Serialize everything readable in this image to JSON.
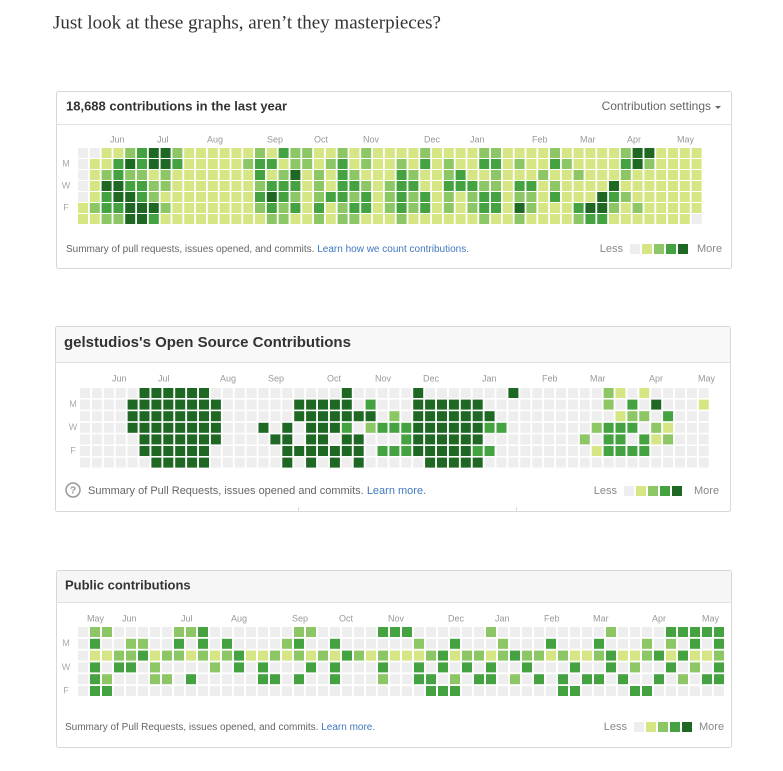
{
  "intro": "Just look at these graphs, aren’t they masterpieces?",
  "graphs": [
    {
      "title": "18,688 contributions in the last year",
      "settings": "Contribution settings",
      "months": [
        "Jun",
        "Jul",
        "Aug",
        "Sep",
        "Oct",
        "Nov",
        "Dec",
        "Jan",
        "Feb",
        "Mar",
        "Apr",
        "May"
      ],
      "days": [
        "M",
        "W",
        "F"
      ],
      "rows": [
        [
          0,
          0,
          1,
          1,
          2,
          3,
          4,
          4,
          2,
          1,
          1,
          1,
          1,
          1,
          1,
          2,
          1,
          3,
          2,
          2,
          1,
          1,
          2,
          1,
          2,
          1,
          1,
          1,
          1,
          2,
          1,
          1,
          1,
          1,
          2,
          2,
          1,
          1,
          1,
          1,
          2,
          1,
          1,
          1,
          1,
          1,
          2,
          4,
          4,
          1,
          1,
          1,
          1
        ],
        [
          0,
          1,
          1,
          3,
          4,
          3,
          4,
          4,
          3,
          1,
          1,
          1,
          1,
          1,
          2,
          3,
          3,
          1,
          2,
          2,
          1,
          2,
          3,
          1,
          2,
          1,
          1,
          2,
          1,
          3,
          1,
          2,
          1,
          1,
          3,
          3,
          1,
          2,
          1,
          1,
          3,
          2,
          1,
          1,
          1,
          1,
          3,
          4,
          2,
          1,
          1,
          1,
          1
        ],
        [
          0,
          1,
          2,
          3,
          2,
          2,
          1,
          2,
          1,
          1,
          1,
          1,
          1,
          1,
          1,
          3,
          1,
          2,
          4,
          1,
          2,
          1,
          3,
          2,
          1,
          1,
          1,
          3,
          2,
          1,
          1,
          2,
          3,
          1,
          1,
          2,
          1,
          1,
          1,
          2,
          1,
          1,
          2,
          1,
          1,
          1,
          2,
          1,
          1,
          1,
          1,
          1,
          1
        ],
        [
          0,
          1,
          4,
          4,
          3,
          3,
          2,
          2,
          1,
          1,
          1,
          1,
          1,
          1,
          1,
          2,
          3,
          3,
          3,
          1,
          2,
          1,
          3,
          3,
          2,
          1,
          2,
          3,
          3,
          1,
          1,
          3,
          3,
          3,
          2,
          2,
          1,
          3,
          3,
          1,
          2,
          1,
          1,
          1,
          1,
          4,
          1,
          1,
          1,
          1,
          1,
          1,
          1
        ],
        [
          0,
          1,
          3,
          4,
          4,
          3,
          2,
          1,
          1,
          1,
          1,
          1,
          1,
          1,
          1,
          3,
          4,
          3,
          2,
          1,
          2,
          3,
          3,
          2,
          3,
          1,
          2,
          3,
          2,
          3,
          1,
          2,
          1,
          2,
          3,
          3,
          1,
          2,
          2,
          1,
          3,
          1,
          1,
          1,
          4,
          3,
          2,
          1,
          1,
          1,
          1,
          1,
          1
        ],
        [
          1,
          2,
          3,
          3,
          4,
          4,
          4,
          2,
          1,
          1,
          1,
          1,
          1,
          1,
          1,
          2,
          3,
          2,
          3,
          1,
          3,
          1,
          2,
          3,
          3,
          1,
          2,
          3,
          2,
          3,
          1,
          2,
          1,
          2,
          3,
          3,
          1,
          4,
          2,
          1,
          1,
          1,
          3,
          4,
          4,
          2,
          1,
          2,
          1,
          1,
          1,
          1,
          1
        ],
        [
          1,
          1,
          2,
          2,
          4,
          4,
          3,
          1,
          1,
          1,
          1,
          1,
          1,
          1,
          1,
          1,
          2,
          2,
          1,
          1,
          2,
          1,
          2,
          2,
          1,
          1,
          1,
          2,
          1,
          1,
          1,
          1,
          1,
          1,
          2,
          1,
          1,
          2,
          1,
          1,
          1,
          1,
          2,
          3,
          3,
          1,
          1,
          1,
          1,
          1,
          1,
          1,
          0
        ]
      ],
      "summary": "Summary of pull requests, issues opened, and commits.",
      "link": "Learn how we count contributions.",
      "less": "Less",
      "more": "More"
    },
    {
      "title": "gelstudios's Open Source Contributions",
      "months": [
        "Jun",
        "Jul",
        "Aug",
        "Sep",
        "Oct",
        "Nov",
        "Dec",
        "Jan",
        "Feb",
        "Mar",
        "Apr",
        "May"
      ],
      "days": [
        "M",
        "W",
        "F"
      ],
      "rows": [
        [
          0,
          0,
          0,
          0,
          0,
          4,
          4,
          4,
          4,
          4,
          4,
          0,
          0,
          0,
          0,
          0,
          0,
          0,
          0,
          0,
          0,
          0,
          4,
          0,
          0,
          0,
          0,
          0,
          4,
          0,
          0,
          0,
          0,
          0,
          0,
          0,
          4,
          0,
          0,
          0,
          0,
          0,
          0,
          0,
          2,
          1,
          0,
          1,
          0,
          0,
          0,
          0,
          0
        ],
        [
          0,
          0,
          0,
          0,
          4,
          4,
          4,
          4,
          4,
          4,
          4,
          4,
          0,
          0,
          0,
          0,
          0,
          0,
          4,
          4,
          4,
          4,
          4,
          0,
          3,
          0,
          0,
          0,
          4,
          4,
          4,
          4,
          4,
          4,
          0,
          0,
          0,
          0,
          0,
          0,
          0,
          0,
          0,
          0,
          2,
          0,
          3,
          0,
          4,
          0,
          0,
          0,
          1
        ],
        [
          0,
          0,
          0,
          0,
          4,
          4,
          4,
          4,
          4,
          4,
          4,
          4,
          0,
          0,
          0,
          0,
          0,
          0,
          4,
          4,
          4,
          4,
          4,
          4,
          4,
          0,
          2,
          0,
          4,
          4,
          4,
          4,
          4,
          4,
          4,
          0,
          0,
          0,
          0,
          0,
          0,
          0,
          0,
          0,
          0,
          1,
          2,
          2,
          0,
          3,
          0,
          0,
          0
        ],
        [
          0,
          0,
          0,
          0,
          4,
          4,
          4,
          4,
          4,
          4,
          4,
          4,
          0,
          0,
          0,
          4,
          0,
          4,
          0,
          4,
          4,
          4,
          3,
          0,
          2,
          3,
          3,
          3,
          4,
          4,
          4,
          4,
          4,
          4,
          3,
          3,
          0,
          0,
          0,
          0,
          0,
          0,
          0,
          2,
          3,
          3,
          3,
          0,
          2,
          1,
          0,
          0,
          0
        ],
        [
          0,
          0,
          0,
          0,
          0,
          4,
          4,
          4,
          4,
          4,
          4,
          4,
          0,
          0,
          0,
          0,
          4,
          4,
          0,
          4,
          4,
          0,
          4,
          4,
          0,
          0,
          0,
          3,
          4,
          4,
          4,
          4,
          4,
          4,
          0,
          0,
          0,
          0,
          0,
          0,
          0,
          0,
          2,
          0,
          3,
          3,
          0,
          3,
          1,
          2,
          0,
          0,
          0
        ],
        [
          0,
          0,
          0,
          0,
          0,
          4,
          4,
          4,
          4,
          4,
          4,
          0,
          0,
          0,
          0,
          0,
          0,
          4,
          4,
          4,
          4,
          4,
          4,
          4,
          0,
          3,
          3,
          3,
          4,
          4,
          4,
          4,
          4,
          3,
          3,
          0,
          0,
          0,
          0,
          0,
          0,
          0,
          0,
          1,
          3,
          3,
          3,
          3,
          0,
          0,
          0,
          0,
          0
        ],
        [
          0,
          0,
          0,
          0,
          0,
          0,
          4,
          4,
          4,
          4,
          4,
          0,
          0,
          0,
          0,
          0,
          0,
          4,
          0,
          4,
          0,
          4,
          0,
          4,
          0,
          0,
          0,
          0,
          0,
          4,
          4,
          4,
          4,
          4,
          0,
          0,
          0,
          0,
          0,
          0,
          0,
          0,
          0,
          0,
          0,
          0,
          0,
          0,
          0,
          0,
          0,
          0,
          0
        ]
      ],
      "summary": "Summary of Pull Requests, issues opened and commits.",
      "link": "Learn more.",
      "less": "Less",
      "more": "More"
    },
    {
      "title": "Public contributions",
      "months": [
        "May",
        "Jun",
        "Jul",
        "Aug",
        "Sep",
        "Oct",
        "Nov",
        "Dec",
        "Jan",
        "Feb",
        "Mar",
        "Apr",
        "May"
      ],
      "days": [
        "M",
        "W",
        "F"
      ],
      "rows": [
        [
          0,
          2,
          2,
          0,
          0,
          0,
          0,
          0,
          2,
          2,
          3,
          0,
          0,
          0,
          0,
          0,
          0,
          0,
          2,
          2,
          0,
          0,
          0,
          0,
          0,
          3,
          3,
          3,
          0,
          0,
          0,
          0,
          0,
          0,
          2,
          0,
          0,
          0,
          0,
          0,
          0,
          0,
          0,
          0,
          2,
          0,
          0,
          0,
          0,
          3,
          3,
          3,
          3,
          3
        ],
        [
          0,
          3,
          0,
          0,
          2,
          2,
          0,
          0,
          3,
          0,
          3,
          0,
          3,
          0,
          0,
          0,
          0,
          2,
          3,
          0,
          0,
          3,
          0,
          0,
          0,
          0,
          0,
          0,
          2,
          0,
          0,
          3,
          0,
          0,
          0,
          2,
          0,
          0,
          0,
          3,
          0,
          0,
          0,
          3,
          0,
          0,
          0,
          2,
          0,
          2,
          0,
          3,
          0,
          3
        ],
        [
          0,
          1,
          1,
          2,
          2,
          3,
          1,
          2,
          2,
          1,
          2,
          1,
          2,
          3,
          1,
          1,
          2,
          1,
          2,
          1,
          2,
          1,
          3,
          2,
          1,
          2,
          1,
          1,
          1,
          2,
          3,
          1,
          2,
          2,
          1,
          2,
          3,
          2,
          2,
          1,
          2,
          1,
          1,
          2,
          3,
          1,
          1,
          2,
          3,
          1,
          3,
          1,
          1,
          2
        ],
        [
          0,
          3,
          0,
          3,
          3,
          0,
          2,
          0,
          0,
          0,
          0,
          2,
          0,
          3,
          0,
          3,
          0,
          0,
          0,
          3,
          0,
          3,
          0,
          0,
          0,
          3,
          0,
          0,
          3,
          0,
          3,
          0,
          3,
          0,
          3,
          0,
          0,
          3,
          0,
          0,
          0,
          3,
          0,
          0,
          3,
          0,
          2,
          0,
          0,
          3,
          0,
          2,
          0,
          3
        ],
        [
          0,
          3,
          2,
          0,
          0,
          0,
          2,
          2,
          0,
          3,
          0,
          0,
          0,
          0,
          0,
          3,
          3,
          0,
          3,
          0,
          0,
          3,
          0,
          0,
          0,
          2,
          0,
          0,
          3,
          3,
          0,
          2,
          0,
          3,
          3,
          0,
          2,
          0,
          3,
          0,
          3,
          0,
          3,
          3,
          0,
          3,
          0,
          0,
          3,
          0,
          2,
          0,
          3,
          3
        ],
        [
          0,
          3,
          3,
          0,
          0,
          0,
          0,
          0,
          0,
          0,
          0,
          0,
          0,
          0,
          0,
          0,
          0,
          0,
          0,
          0,
          0,
          0,
          0,
          0,
          0,
          0,
          0,
          0,
          0,
          3,
          3,
          3,
          0,
          0,
          0,
          0,
          0,
          0,
          0,
          0,
          3,
          3,
          0,
          0,
          0,
          0,
          3,
          3,
          0,
          0,
          0,
          0,
          0,
          0
        ]
      ],
      "summary": "Summary of Pull Requests, issues opened, and commits.",
      "link": "Learn more.",
      "less": "Less",
      "more": "More"
    }
  ]
}
